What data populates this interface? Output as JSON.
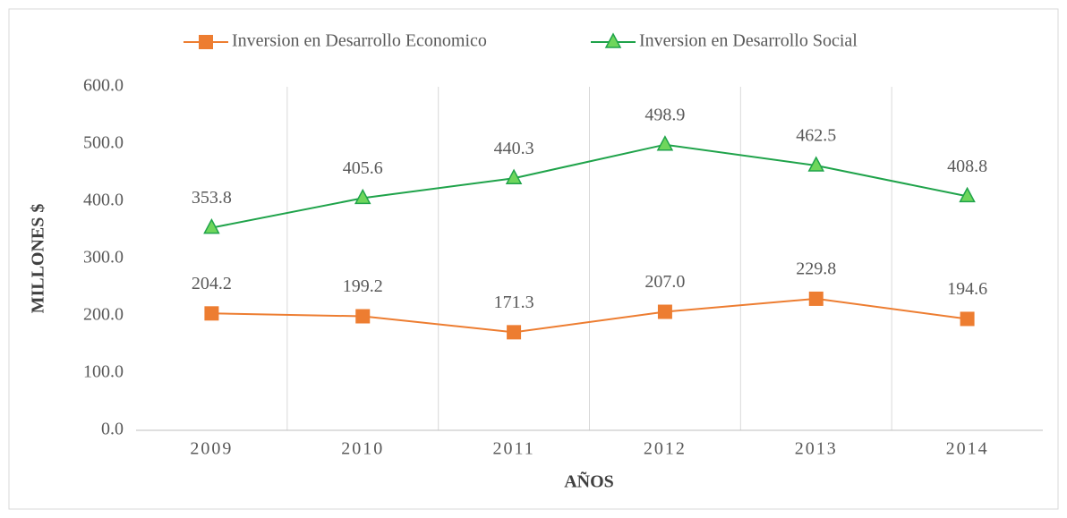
{
  "chart_data": {
    "type": "line",
    "x_label": "AÑOS",
    "y_label": "MILLONES $",
    "categories": [
      "2009",
      "2010",
      "2011",
      "2012",
      "2013",
      "2014"
    ],
    "series": [
      {
        "name": "Inversion en Desarrollo Economico",
        "color": "#ed7d31",
        "marker": "square",
        "marker_color": "#ed7d31",
        "values": [
          204.2,
          199.2,
          171.3,
          207.0,
          229.8,
          194.6
        ],
        "value_labels": [
          "204.2",
          "199.2",
          "171.3",
          "207.0",
          "229.8",
          "194.6"
        ]
      },
      {
        "name": "Inversion en Desarrollo Social",
        "color": "#1fa34a",
        "marker": "triangle",
        "marker_color": "#6fd65c",
        "values": [
          353.8,
          405.6,
          440.3,
          498.9,
          462.5,
          408.8
        ],
        "value_labels": [
          "353.8",
          "405.6",
          "440.3",
          "498.9",
          "462.5",
          "408.8"
        ]
      }
    ],
    "ylim": [
      0,
      600
    ],
    "yticks": [
      {
        "value": 0,
        "label": "0.0"
      },
      {
        "value": 100,
        "label": "100.0"
      },
      {
        "value": 200,
        "label": "200.0"
      },
      {
        "value": 300,
        "label": "300.0"
      },
      {
        "value": 400,
        "label": "400.0"
      },
      {
        "value": 500,
        "label": "500.0"
      },
      {
        "value": 600,
        "label": "600.0"
      }
    ],
    "legend": "top",
    "grid": false,
    "category_grid": true
  }
}
